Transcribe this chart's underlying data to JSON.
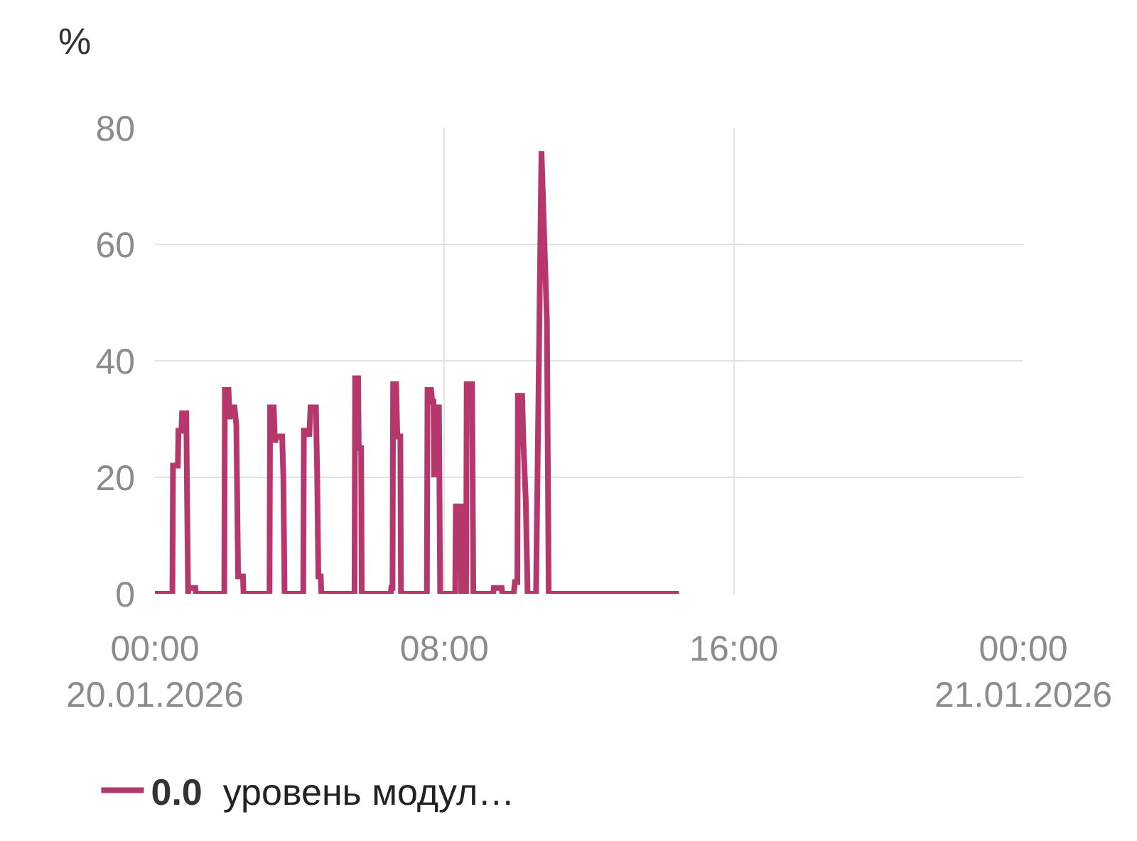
{
  "chart_data": {
    "type": "line",
    "ylabel": "%",
    "x": [
      "2026-01-20T00:00",
      "2026-01-20T00:29",
      "2026-01-20T00:30",
      "2026-01-20T00:38",
      "2026-01-20T00:39",
      "2026-01-20T00:44",
      "2026-01-20T00:45",
      "2026-01-20T00:52",
      "2026-01-20T00:53",
      "2026-01-20T00:55",
      "2026-01-20T00:56",
      "2026-01-20T01:07",
      "2026-01-20T01:08",
      "2026-01-20T01:55",
      "2026-01-20T01:56",
      "2026-01-20T02:02",
      "2026-01-20T02:04",
      "2026-01-20T02:06",
      "2026-01-20T02:12",
      "2026-01-20T02:15",
      "2026-01-20T02:18",
      "2026-01-20T02:26",
      "2026-01-20T02:27",
      "2026-01-20T03:10",
      "2026-01-20T03:11",
      "2026-01-20T03:17",
      "2026-01-20T03:19",
      "2026-01-20T03:22",
      "2026-01-20T03:31",
      "2026-01-20T03:33",
      "2026-01-20T03:35",
      "2026-01-20T04:06",
      "2026-01-20T04:07",
      "2026-01-20T04:14",
      "2026-01-20T04:16",
      "2026-01-20T04:18",
      "2026-01-20T04:27",
      "2026-01-20T04:29",
      "2026-01-20T04:31",
      "2026-01-20T04:35",
      "2026-01-20T04:36",
      "2026-01-20T05:31",
      "2026-01-20T05:32",
      "2026-01-20T05:37",
      "2026-01-20T05:38",
      "2026-01-20T05:42",
      "2026-01-20T05:43",
      "2026-01-20T06:31",
      "2026-01-20T06:32",
      "2026-01-20T06:34",
      "2026-01-20T06:35",
      "2026-01-20T06:40",
      "2026-01-20T06:42",
      "2026-01-20T06:47",
      "2026-01-20T06:48",
      "2026-01-20T07:31",
      "2026-01-20T07:32",
      "2026-01-20T07:38",
      "2026-01-20T07:40",
      "2026-01-20T07:42",
      "2026-01-20T07:43",
      "2026-01-20T07:45",
      "2026-01-20T07:51",
      "2026-01-20T07:53",
      "2026-01-20T08:18",
      "2026-01-20T08:19",
      "2026-01-20T08:27",
      "2026-01-20T08:28",
      "2026-01-20T08:36",
      "2026-01-20T08:37",
      "2026-01-20T08:46",
      "2026-01-20T08:48",
      "2026-01-20T09:21",
      "2026-01-20T09:22",
      "2026-01-20T09:35",
      "2026-01-20T09:36",
      "2026-01-20T09:55",
      "2026-01-20T09:57",
      "2026-01-20T10:01",
      "2026-01-20T10:02",
      "2026-01-20T10:09",
      "2026-01-20T10:11",
      "2026-01-20T10:15",
      "2026-01-20T10:18",
      "2026-01-20T10:32",
      "2026-01-20T10:41",
      "2026-01-20T10:50",
      "2026-01-20T10:53",
      "2026-01-20T14:29"
    ],
    "series": [
      {
        "name": "уровень модул…",
        "color": "#b5376c",
        "values": [
          0,
          0,
          22,
          22,
          28,
          28,
          31,
          31,
          20,
          0,
          1,
          1,
          0,
          0,
          35,
          35,
          30,
          32,
          32,
          29,
          3,
          3,
          0,
          0,
          32,
          32,
          26,
          27,
          27,
          20,
          0,
          0,
          28,
          28,
          27,
          32,
          32,
          21,
          3,
          3,
          0,
          0,
          37,
          37,
          25,
          25,
          0,
          0,
          1,
          1,
          36,
          36,
          27,
          27,
          0,
          0,
          35,
          35,
          33,
          33,
          20,
          32,
          32,
          0,
          0,
          15,
          15,
          0,
          0,
          36,
          36,
          0,
          0,
          1,
          1,
          0,
          0,
          2,
          2,
          34,
          34,
          26,
          16,
          0,
          0,
          76,
          47,
          0,
          0
        ]
      }
    ],
    "xlim": [
      "2026-01-20T00:00",
      "2026-01-21T00:00"
    ],
    "xticks": [
      {
        "value": "2026-01-20T00:00",
        "label": "00:00\n20.01.2026"
      },
      {
        "value": "2026-01-20T08:00",
        "label": "08:00"
      },
      {
        "value": "2026-01-20T16:00",
        "label": "16:00"
      },
      {
        "value": "2026-01-21T00:00",
        "label": "00:00\n21.01.2026"
      }
    ],
    "ylim": [
      0,
      80
    ],
    "yticks": [
      0,
      20,
      40,
      60,
      80
    ],
    "grid": true,
    "legend": "bottom left",
    "line_style": "solid",
    "annotations": [
      "0.0"
    ]
  }
}
